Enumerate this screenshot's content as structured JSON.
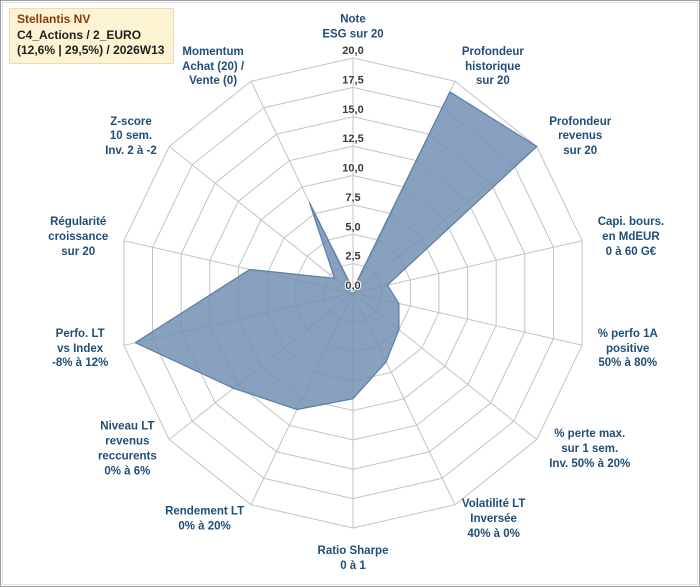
{
  "window": {
    "background": "#ffffff",
    "border_color": "#9e9e9e"
  },
  "title_box": {
    "line1": "Stellantis NV",
    "line2": "C4_Actions / 2_EURO",
    "line3": "(12,6% | 29,5%) / 2026W13",
    "background": "#fdf2d2",
    "title_color": "#8c3a0c"
  },
  "chart_data": {
    "type": "radar",
    "legend_position": "none",
    "grid": true,
    "axes": [
      {
        "label": "Note\nESG sur 20",
        "value": 0.3
      },
      {
        "label": "Profondeur\nhistorique\nsur 20",
        "value": 19.0
      },
      {
        "label": "Profondeur\nrevenus\nsur 20",
        "value": 20.0
      },
      {
        "label": "Capi. bours.\nen MdEUR\n0 à 60 G€",
        "value": 3.0
      },
      {
        "label": "% perfo 1A\npositive\n50% à 80%",
        "value": 4.0
      },
      {
        "label": "% perte max.\nsur 1 sem.\nInv. 50% à 20%",
        "value": 5.0
      },
      {
        "label": "Volatilité LT\nInversée\n40% à 0%",
        "value": 6.5
      },
      {
        "label": "Ratio Sharpe\n0 à 1",
        "value": 9.0
      },
      {
        "label": "Rendement LT\n0% à 20%",
        "value": 11.0
      },
      {
        "label": "Niveau LT\nrevenus\nreccurents\n0% à 6%",
        "value": 13.0
      },
      {
        "label": "Perfo. LT\nvs Index\n-8% à 12%",
        "value": 19.0
      },
      {
        "label": "Régularité\ncroissance\nsur 20",
        "value": 9.0
      },
      {
        "label": "Z-score\n10 sem.\nInv. 2 à -2",
        "value": 2.0
      },
      {
        "label": "Momentum\nAchat (20) /\nVente (0)",
        "value": 8.5
      }
    ],
    "radial_axis": {
      "min": 0,
      "max": 20,
      "step": 2.5,
      "tick_labels": [
        "0,0",
        "2,5",
        "5,0",
        "7,5",
        "10,0",
        "12,5",
        "15,0",
        "17,5",
        "20,0"
      ]
    },
    "grid_color": "#c3c3c3",
    "fill_color": "#7390b4",
    "fill_opacity": 0.85,
    "stroke_color": "#5f80a8",
    "label_color": "#1f4e79",
    "tick_color": "#3a3a3a"
  }
}
